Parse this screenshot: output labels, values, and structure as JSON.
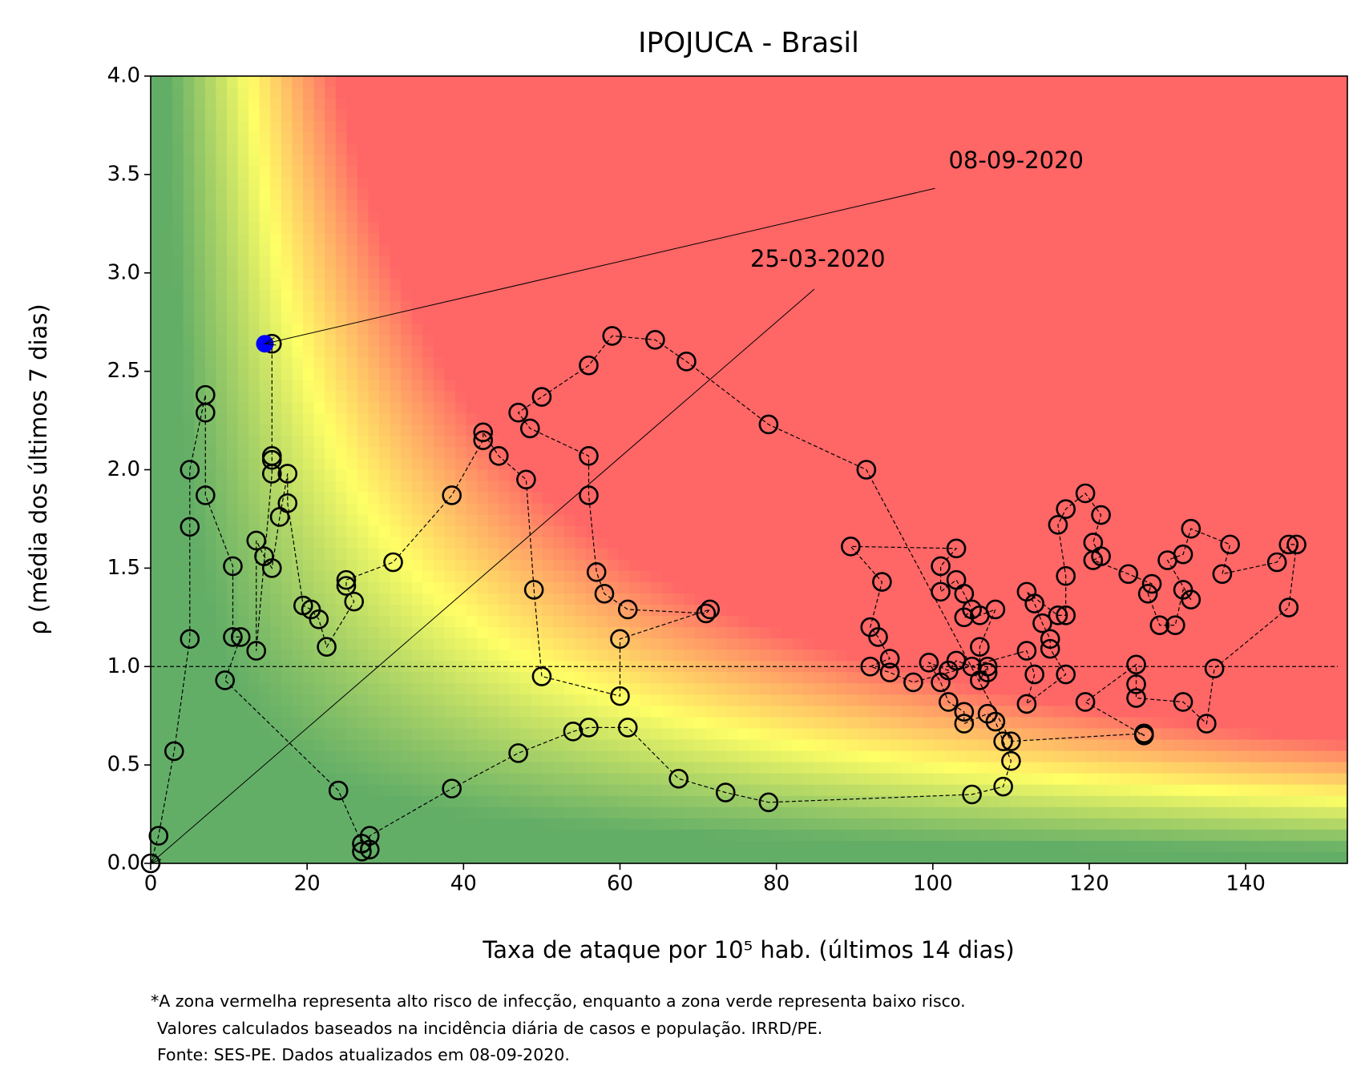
{
  "chart_data": {
    "type": "line",
    "title": "IPOJUCA - Brasil",
    "x_label": "Taxa de ataque por 10⁵ hab. (últimos 14 dias)",
    "y_label": "ρ (média dos últimos 7 dias)",
    "footnote": [
      "*A zona vermelha representa alto risco de infecção, enquanto a zona verde representa baixo risco.",
      "Valores calculados baseados na incidência diária de casos e população. IRRD/PE.",
      "Fonte: SES-PE. Dados atualizados em 08-09-2020."
    ],
    "xlim": [
      0,
      153
    ],
    "ylim": [
      0,
      4
    ],
    "xticks": [
      0,
      20,
      40,
      60,
      80,
      100,
      120,
      140
    ],
    "yticks": [
      {
        "value": 0,
        "label": "0.0"
      },
      {
        "value": 0.5,
        "label": "0.5"
      },
      {
        "value": 1,
        "label": "1.0"
      },
      {
        "value": 1.5,
        "label": "1.5"
      },
      {
        "value": 2,
        "label": "2.0"
      },
      {
        "value": 2.5,
        "label": "2.5"
      },
      {
        "value": 3,
        "label": "3.0"
      },
      {
        "value": 3.5,
        "label": "3.5"
      },
      {
        "value": 4,
        "label": "4.0"
      }
    ],
    "reference_line": 1,
    "zone_colors": [
      "#63ae67",
      "#ffff66",
      "#ff6666"
    ],
    "last_point_color": "#0000ff",
    "annotations": [
      {
        "text": "25-03-2020",
        "x": 0,
        "y": 0
      },
      {
        "text": "08-09-2020",
        "x": 14.6,
        "y": 2.64
      }
    ],
    "x": [
      0,
      1,
      3,
      5,
      5,
      5,
      7,
      7,
      7,
      10.5,
      10.5,
      11.5,
      9.5,
      24,
      27,
      27,
      28,
      28,
      38.5,
      47,
      54,
      56,
      61,
      67.5,
      73.5,
      79,
      105,
      109,
      110,
      109,
      108,
      107,
      104,
      104,
      102,
      101,
      99.5,
      102,
      103,
      105,
      107,
      107,
      106,
      106,
      108,
      106,
      104,
      105,
      104,
      103,
      101,
      101,
      103,
      89.5,
      93.5,
      92,
      93,
      94.5,
      92,
      94.5,
      97.5,
      112,
      113,
      112,
      117,
      115,
      115,
      114,
      113,
      112,
      116,
      117,
      117,
      116,
      117,
      119.5,
      121.5,
      120.5,
      121.5,
      120.5,
      125,
      128,
      127.5,
      129,
      131,
      132,
      133,
      130,
      132,
      133,
      138,
      137,
      144,
      145.5,
      146.5,
      145.5,
      136,
      135,
      132,
      126,
      126,
      126,
      119.5,
      127,
      127,
      110,
      91.5,
      79,
      68.5,
      64.5,
      59,
      56,
      50,
      47,
      48.5,
      56,
      56,
      57,
      58,
      61,
      71,
      71.5,
      60,
      60,
      50,
      49,
      48,
      44.5,
      42.5,
      42.5,
      38.5,
      31,
      25,
      25,
      26,
      22.5,
      21.5,
      20.5,
      19.5,
      17.5,
      17.5,
      16.5,
      15.5,
      14.5,
      13.5,
      13.5,
      15.5,
      15.5,
      15.5,
      15.5,
      14.6
    ],
    "series": [
      {
        "color": "#000000",
        "values": [
          0,
          0.14,
          0.57,
          1.14,
          1.71,
          2.0,
          2.38,
          2.29,
          1.87,
          1.51,
          1.15,
          1.15,
          0.93,
          0.37,
          0.1,
          0.06,
          0.07,
          0.14,
          0.38,
          0.56,
          0.67,
          0.69,
          0.69,
          0.43,
          0.36,
          0.31,
          0.35,
          0.39,
          0.52,
          0.62,
          0.72,
          0.76,
          0.71,
          0.77,
          0.82,
          0.92,
          1.02,
          0.98,
          1.03,
          1.0,
          0.97,
          1.0,
          0.93,
          1.1,
          1.29,
          1.26,
          1.25,
          1.29,
          1.37,
          1.44,
          1.38,
          1.51,
          1.6,
          1.61,
          1.43,
          1.2,
          1.15,
          1.04,
          1.0,
          0.97,
          0.92,
          1.08,
          0.96,
          0.81,
          0.96,
          1.09,
          1.14,
          1.22,
          1.32,
          1.38,
          1.26,
          1.26,
          1.46,
          1.72,
          1.8,
          1.88,
          1.77,
          1.63,
          1.56,
          1.54,
          1.47,
          1.42,
          1.37,
          1.21,
          1.21,
          1.39,
          1.34,
          1.54,
          1.57,
          1.7,
          1.62,
          1.47,
          1.53,
          1.62,
          1.62,
          1.3,
          0.99,
          0.71,
          0.82,
          0.84,
          0.91,
          1.01,
          0.82,
          0.65,
          0.66,
          0.62,
          2.0,
          2.23,
          2.55,
          2.66,
          2.68,
          2.53,
          2.37,
          2.29,
          2.21,
          2.07,
          1.87,
          1.48,
          1.37,
          1.29,
          1.27,
          1.29,
          1.14,
          0.85,
          0.95,
          1.39,
          1.95,
          2.07,
          2.19,
          2.15,
          1.87,
          1.53,
          1.44,
          1.41,
          1.33,
          1.1,
          1.24,
          1.29,
          1.31,
          1.83,
          1.98,
          1.76,
          1.5,
          1.56,
          1.64,
          1.08,
          1.98,
          2.05,
          2.07,
          2.64,
          2.64
        ]
      }
    ]
  }
}
